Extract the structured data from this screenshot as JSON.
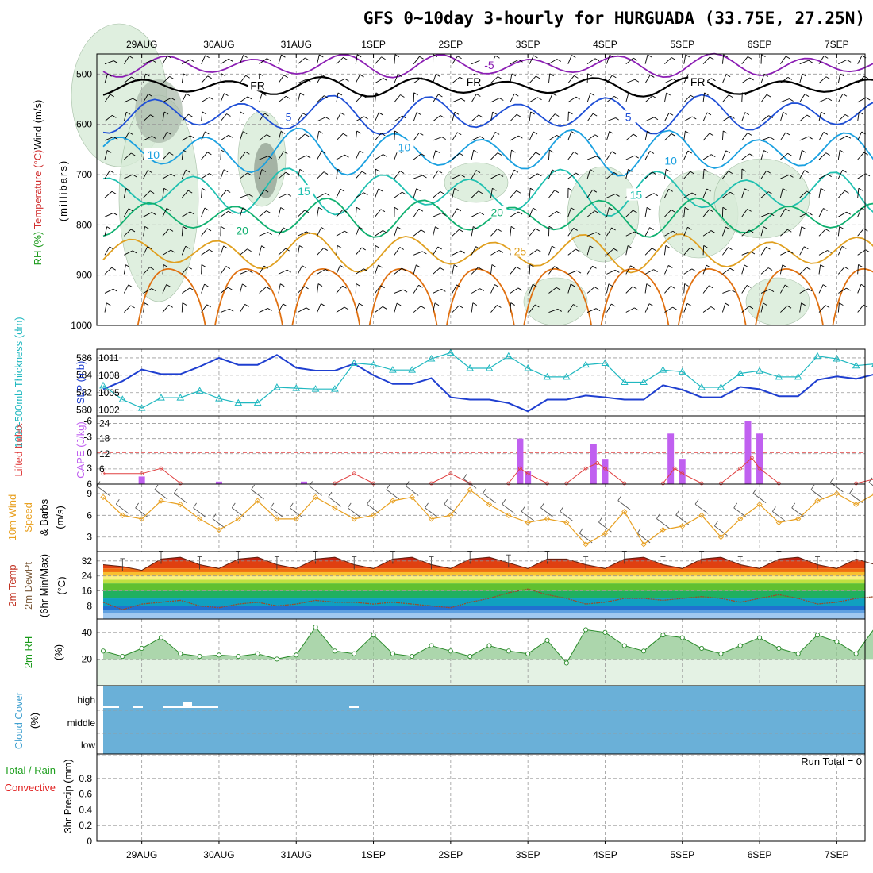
{
  "title": "GFS 0~10day 3-hourly for HURGUADA (33.75E, 27.25N)",
  "dates": [
    "29AUG",
    "30AUG",
    "31AUG",
    "1SEP",
    "2SEP",
    "3SEP",
    "4SEP",
    "5SEP",
    "6SEP",
    "7SEP"
  ],
  "colors": {
    "purple": "#8c1fb4",
    "blue": "#1f4fd6",
    "skyblue": "#1aa0e0",
    "teal": "#20c0b0",
    "green": "#10b070",
    "orange": "#e0a020",
    "darkorange": "#e07010",
    "slp": "#1f3fd0",
    "thick": "#20b8c0",
    "li": "#e04040",
    "cape": "#c060f0",
    "wind10": "#e8a020",
    "rh_fill": "#90c890",
    "cloud": "#6ab0d8"
  },
  "panels": [
    {
      "id": "upper-air",
      "ylabel_parts": [
        "Wind (m/s)",
        "Temperature (°C)",
        "RH (%)"
      ],
      "ylabel_sub": "(millibars)",
      "yticks": [
        "500",
        "600",
        "700",
        "800",
        "900",
        "1000"
      ],
      "isotherm_labels": [
        {
          "text": "-5",
          "x_day": 5.0,
          "p": 487,
          "color": "purple"
        },
        {
          "text": "FR",
          "x_day": 2.0,
          "p": 527,
          "color": "black"
        },
        {
          "text": "FR",
          "x_day": 4.8,
          "p": 520,
          "color": "black"
        },
        {
          "text": "FR",
          "x_day": 7.7,
          "p": 520,
          "color": "black"
        },
        {
          "text": "5",
          "x_day": 2.4,
          "p": 590,
          "color": "blue"
        },
        {
          "text": "5",
          "x_day": 6.8,
          "p": 590,
          "color": "blue"
        },
        {
          "text": "10",
          "x_day": 0.65,
          "p": 665,
          "color": "skyblue"
        },
        {
          "text": "10",
          "x_day": 3.9,
          "p": 650,
          "color": "skyblue"
        },
        {
          "text": "10",
          "x_day": 7.35,
          "p": 677,
          "color": "skyblue"
        },
        {
          "text": "15",
          "x_day": 2.6,
          "p": 738,
          "color": "teal"
        },
        {
          "text": "15",
          "x_day": 6.9,
          "p": 745,
          "color": "teal"
        },
        {
          "text": "20",
          "x_day": 1.8,
          "p": 816,
          "color": "green"
        },
        {
          "text": "20",
          "x_day": 5.1,
          "p": 780,
          "color": "green"
        },
        {
          "text": "25",
          "x_day": 5.4,
          "p": 857,
          "color": "orange"
        }
      ]
    },
    {
      "id": "slp-thickness",
      "ylabel_left": "1000-500mb Thickness (dm)",
      "ylabel_right": "SLP (mb)",
      "left_ticks": [
        "586",
        "584",
        "582",
        "580"
      ],
      "right_ticks": [
        "1011",
        "1008",
        "1005",
        "1002"
      ]
    },
    {
      "id": "li-cape",
      "ylabel_left": "Lifted Index",
      "ylabel_right": "CAPE (J/kg)",
      "left_ticks": [
        "-6",
        "-3",
        "0",
        "3",
        "6"
      ],
      "right_ticks": [
        "24",
        "18",
        "12",
        "6"
      ]
    },
    {
      "id": "wind10m",
      "ylabel": "10m Wind Speed & Barbs (m/s)",
      "ylabel_parts": [
        "10m Wind",
        "Speed",
        "& Barbs"
      ],
      "yticks": [
        "9",
        "6",
        "3"
      ]
    },
    {
      "id": "temp2m",
      "ylabel_parts": [
        "2m Temp",
        "2m DewPt",
        "(6hr Min/Max)"
      ],
      "unit": "(°C)",
      "yticks": [
        "32",
        "24",
        "16",
        "8"
      ]
    },
    {
      "id": "rh2m",
      "ylabel": "2m RH",
      "unit": "(%)",
      "yticks": [
        "40",
        "20"
      ]
    },
    {
      "id": "cloud",
      "ylabel": "Cloud Cover",
      "unit": "(%)",
      "ycats": [
        "high",
        "middle",
        "low"
      ]
    },
    {
      "id": "precip",
      "ylabel_parts": [
        "Total / Rain",
        "Convective"
      ],
      "ylabel_sub": "3hr Precip (mm)",
      "yticks": [
        "0.8",
        "0.6",
        "0.4",
        "0.2",
        "0"
      ],
      "run_total": "Run Total = 0"
    }
  ],
  "chart_data": [
    {
      "type": "line",
      "panel": "slp-thickness",
      "x_unit": "days from 28AUG 12Z",
      "x": [
        0,
        0.25,
        0.5,
        0.75,
        1,
        1.25,
        1.5,
        1.75,
        2,
        2.25,
        2.5,
        2.75,
        3,
        3.25,
        3.5,
        3.75,
        4,
        4.25,
        4.5,
        4.75,
        5,
        5.25,
        5.5,
        5.75,
        6,
        6.25,
        6.5,
        6.75,
        7,
        7.25,
        7.5,
        7.75,
        8,
        8.25,
        8.5,
        8.75,
        9,
        9.25,
        9.5,
        9.75,
        10
      ],
      "series": [
        {
          "name": "SLP (mb)",
          "values": [
            1005.6,
            1007,
            1009,
            1008.2,
            1008.2,
            1009.5,
            1011,
            1009.8,
            1009.8,
            1011.5,
            1009.3,
            1008.8,
            1008.8,
            1010,
            1008,
            1006.5,
            1006.5,
            1007.5,
            1004.2,
            1003.8,
            1003.8,
            1003.2,
            1001.8,
            1003.8,
            1003.8,
            1004.5,
            1004.2,
            1003.8,
            1003.8,
            1006.3,
            1005.5,
            1004.2,
            1004.2,
            1006,
            1005.6,
            1004.4,
            1004.4,
            1007.2,
            1007.8,
            1007.4,
            1008.2
          ]
        },
        {
          "name": "1000-500mb Thickness (dm)",
          "values": [
            582.8,
            581.2,
            580.2,
            581.4,
            581.4,
            582.2,
            581.3,
            580.8,
            580.8,
            582.6,
            582.5,
            582.4,
            582.4,
            585.4,
            585.2,
            584.6,
            584.6,
            585.9,
            586.6,
            584.8,
            584.8,
            586.2,
            584.8,
            583.8,
            583.8,
            585.2,
            585.4,
            583.2,
            583.2,
            584.6,
            584.4,
            582.6,
            582.6,
            584.2,
            584.5,
            583.8,
            583.8,
            586.2,
            585.9,
            585.1,
            585.3
          ]
        }
      ]
    },
    {
      "type": "bar",
      "panel": "li-cape",
      "series": [
        {
          "name": "CAPE (J/kg)",
          "x": [
            0.5,
            1.5,
            2.6,
            5.4,
            5.5,
            6.35,
            6.5,
            7.35,
            7.5,
            8.35,
            8.5
          ],
          "values": [
            3,
            1,
            1,
            18,
            5,
            16,
            10,
            20,
            10,
            25,
            20
          ]
        },
        {
          "name": "Lifted Index",
          "x": [
            0,
            0.5,
            0.75,
            1,
            1.5,
            1.75,
            2,
            2.25,
            2.5,
            2.75,
            3,
            3.25,
            3.5,
            3.75,
            4,
            4.25,
            4.5,
            4.75,
            5,
            5.25,
            5.4,
            5.5,
            5.75,
            6,
            6.25,
            6.4,
            6.5,
            6.75,
            7,
            7.25,
            7.4,
            7.5,
            7.75,
            8,
            8.25,
            8.4,
            8.5,
            8.75,
            9,
            9.25,
            9.5,
            9.75,
            10
          ],
          "values": [
            4,
            4,
            3,
            6,
            6,
            6,
            6,
            6,
            6,
            6,
            6,
            4,
            6,
            6,
            6,
            6,
            4,
            6,
            6,
            6,
            3,
            4,
            6,
            6,
            3,
            2,
            3,
            6,
            6,
            6,
            3,
            4,
            6,
            6,
            3,
            1,
            3,
            6,
            6,
            6,
            6,
            6,
            5
          ]
        }
      ]
    },
    {
      "type": "line",
      "panel": "wind10m",
      "name": "10m Wind Speed (m/s)",
      "x": [
        0,
        0.25,
        0.5,
        0.75,
        1,
        1.25,
        1.5,
        1.75,
        2,
        2.25,
        2.5,
        2.75,
        3,
        3.25,
        3.5,
        3.75,
        4,
        4.25,
        4.5,
        4.75,
        5,
        5.25,
        5.5,
        5.75,
        6,
        6.25,
        6.5,
        6.75,
        7,
        7.25,
        7.5,
        7.75,
        8,
        8.25,
        8.5,
        8.75,
        9,
        9.25,
        9.5,
        9.75,
        10
      ],
      "values": [
        8.5,
        6,
        5.5,
        8,
        7.5,
        5.5,
        4,
        5.5,
        8,
        5.5,
        5.5,
        8.5,
        7,
        5.5,
        6,
        8,
        8.5,
        5.5,
        6,
        9.5,
        7.5,
        6,
        5,
        5.5,
        5,
        2,
        3.5,
        6.5,
        2,
        4,
        4.5,
        6,
        3,
        5.5,
        7.5,
        5,
        5.5,
        8,
        9,
        7.5,
        9
      ]
    },
    {
      "type": "area",
      "panel": "temp2m",
      "series": [
        {
          "name": "2m Temp (°C)",
          "x": [
            0,
            0.25,
            0.5,
            0.75,
            1,
            1.25,
            1.5,
            1.75,
            2,
            2.25,
            2.5,
            2.75,
            3,
            3.25,
            3.5,
            3.75,
            4,
            4.25,
            4.5,
            4.75,
            5,
            5.25,
            5.5,
            5.75,
            6,
            6.25,
            6.5,
            6.75,
            7,
            7.25,
            7.5,
            7.75,
            8,
            8.25,
            8.5,
            8.75,
            9,
            9.25,
            9.5,
            9.75,
            10
          ],
          "values": [
            30,
            29,
            27,
            33,
            34,
            30,
            28,
            33,
            34,
            30,
            28,
            33,
            34,
            30,
            28,
            33,
            34,
            30,
            28,
            33,
            34,
            31,
            28,
            33,
            33,
            30,
            28,
            33,
            34,
            30,
            28,
            33,
            34,
            30,
            28,
            33,
            34,
            30,
            28,
            33,
            30
          ]
        },
        {
          "name": "2m DewPt (°C)",
          "x": [
            0,
            0.25,
            0.5,
            0.75,
            1,
            1.25,
            1.5,
            1.75,
            2,
            2.25,
            2.5,
            2.75,
            3,
            3.25,
            3.5,
            3.75,
            4,
            4.25,
            4.5,
            4.75,
            5,
            5.25,
            5.5,
            5.75,
            6,
            6.25,
            6.5,
            6.75,
            7,
            7.25,
            7.5,
            7.75,
            8,
            8.25,
            8.5,
            8.75,
            9,
            9.25,
            9.5,
            9.75,
            10
          ],
          "values": [
            10,
            6,
            9,
            10,
            11,
            8,
            7,
            9,
            10,
            8,
            9,
            11,
            10,
            10,
            9,
            10,
            9,
            8,
            7,
            10,
            12,
            15,
            17,
            14,
            12,
            9,
            10,
            12,
            12,
            11,
            12,
            13,
            12,
            10,
            12,
            14,
            12,
            9,
            10,
            12,
            13
          ]
        }
      ]
    },
    {
      "type": "line",
      "panel": "rh2m",
      "name": "2m RH (%)",
      "x": [
        0,
        0.25,
        0.5,
        0.75,
        1,
        1.25,
        1.5,
        1.75,
        2,
        2.25,
        2.5,
        2.75,
        3,
        3.25,
        3.5,
        3.75,
        4,
        4.25,
        4.5,
        4.75,
        5,
        5.25,
        5.5,
        5.75,
        6,
        6.25,
        6.5,
        6.75,
        7,
        7.25,
        7.5,
        7.75,
        8,
        8.25,
        8.5,
        8.75,
        9,
        9.25,
        9.5,
        9.75,
        10
      ],
      "values": [
        26,
        22,
        28,
        36,
        24,
        22,
        23,
        22,
        24,
        20,
        23,
        44,
        26,
        24,
        38,
        24,
        22,
        30,
        26,
        22,
        30,
        26,
        24,
        34,
        17,
        42,
        40,
        30,
        26,
        38,
        36,
        28,
        24,
        30,
        36,
        28,
        24,
        38,
        33,
        24,
        44
      ]
    },
    {
      "type": "bar",
      "panel": "cloud",
      "name": "Cloud Cover (%)",
      "note": "near-total cloud cover at all levels throughout",
      "values": [
        100
      ]
    },
    {
      "type": "bar",
      "panel": "precip",
      "name": "3hr Precip (mm)",
      "ylim": [
        0,
        1
      ],
      "values": [
        0
      ]
    }
  ]
}
